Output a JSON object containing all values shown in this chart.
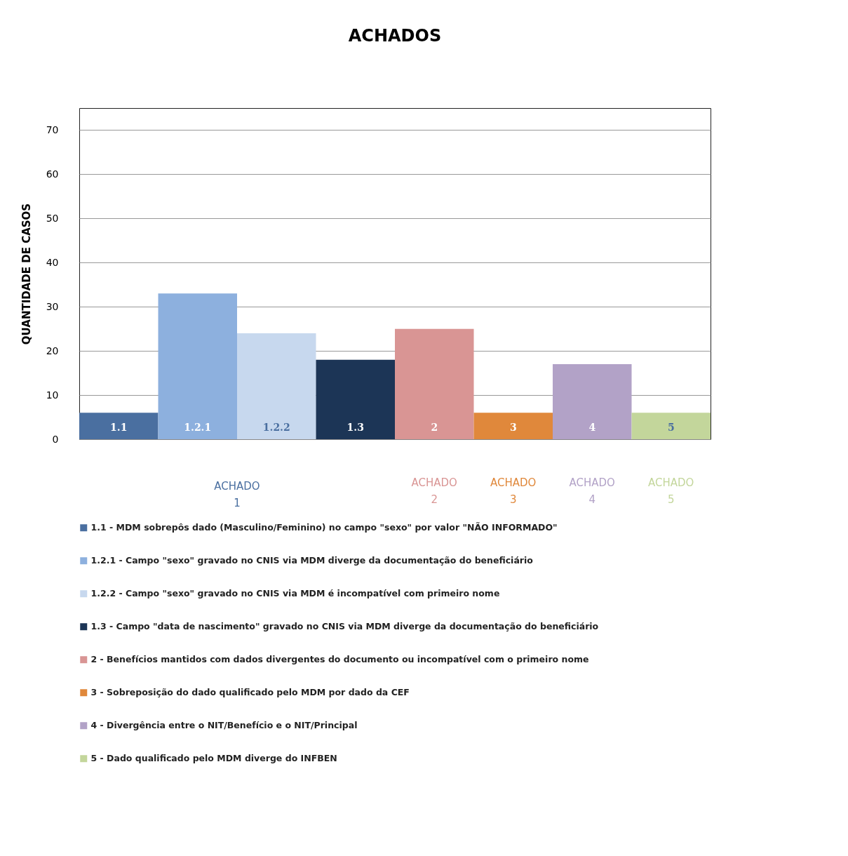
{
  "chart_data": {
    "type": "bar",
    "title": "ACHADOS",
    "ylabel": "QUANTIDADE DE CASOS",
    "categories": [
      "1.1",
      "1.2.1",
      "1.2.2",
      "1.3",
      "2",
      "3",
      "4",
      "5"
    ],
    "series": [
      {
        "name": "1.1 - MDM sobrepôs dado (Masculino/Feminino) no campo \"sexo\" por valor \"NÃO INFORMADO\"",
        "color": "#4a6fa0",
        "values": [
          6,
          null,
          null,
          null,
          null,
          null,
          null,
          null
        ]
      },
      {
        "name": "1.2.1 - Campo \"sexo\" gravado no CNIS via MDM diverge da documentação do beneficiário",
        "color": "#8db0de",
        "values": [
          null,
          33,
          null,
          null,
          null,
          null,
          null,
          null
        ]
      },
      {
        "name": "1.2.2 - Campo \"sexo\" gravado no CNIS via MDM é incompatível com primeiro nome",
        "color": "#c7d8ee",
        "values": [
          null,
          null,
          24,
          null,
          null,
          null,
          null,
          null
        ]
      },
      {
        "name": "1.3 - Campo \"data de nascimento\" gravado no CNIS via MDM diverge da documentação do beneficiário",
        "color": "#1c3556",
        "values": [
          null,
          null,
          null,
          18,
          null,
          null,
          null,
          null
        ]
      },
      {
        "name": "2 - Benefícios mantidos com dados divergentes do documento ou incompatível com o primeiro nome",
        "color": "#d99594",
        "values": [
          null,
          null,
          null,
          null,
          25,
          null,
          null,
          null
        ]
      },
      {
        "name": "3 - Sobreposição do dado qualificado pelo MDM por dado da CEF",
        "color": "#e0883b",
        "values": [
          null,
          null,
          null,
          null,
          null,
          6,
          null,
          null
        ]
      },
      {
        "name": "4 - Divergência entre o NIT/Benefício e o NIT/Principal",
        "color": "#b2a2c7",
        "values": [
          null,
          null,
          null,
          null,
          null,
          null,
          17,
          null
        ]
      },
      {
        "name": "5 - Dado qualificado pelo MDM diverge do INFBEN",
        "color": "#c3d69b",
        "values": [
          null,
          null,
          null,
          null,
          null,
          null,
          null,
          6
        ]
      }
    ],
    "annotations": [
      "ACHADO 1",
      "ACHADO 2",
      "ACHADO 3",
      "ACHADO 4",
      "ACHADO 5"
    ],
    "ylim": [
      0,
      75
    ],
    "yticks": [
      0,
      10,
      20,
      30,
      40,
      50,
      60,
      70
    ],
    "grid": "y",
    "legend": "bottom"
  }
}
